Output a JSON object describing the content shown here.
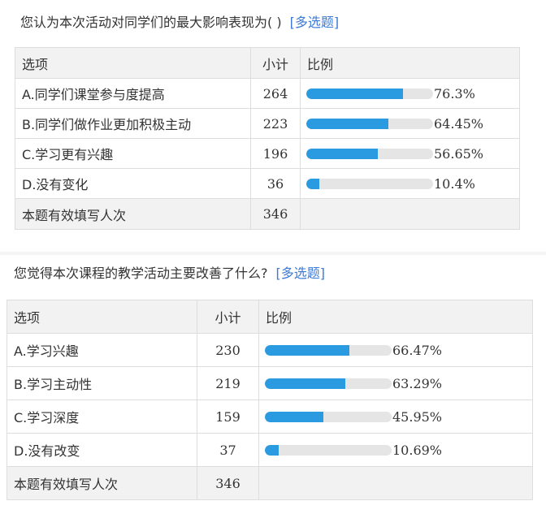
{
  "questions": [
    {
      "title": "您认为本次活动对同学们的最大影响表现为( )",
      "tag": "[多选题]",
      "headers": {
        "option": "选项",
        "count": "小计",
        "ratio": "比例"
      },
      "rows": [
        {
          "option": "A.同学们课堂参与度提高",
          "count": "264",
          "percent_text": "76.3%",
          "percent": 76.3
        },
        {
          "option": "B.同学们做作业更加积极主动",
          "count": "223",
          "percent_text": "64.45%",
          "percent": 64.45
        },
        {
          "option": "C.学习更有兴趣",
          "count": "196",
          "percent_text": "56.65%",
          "percent": 56.65
        },
        {
          "option": "D.没有变化",
          "count": "36",
          "percent_text": "10.4%",
          "percent": 10.4
        }
      ],
      "total": {
        "label": "本题有效填写人次",
        "count": "346"
      }
    },
    {
      "title": "您觉得本次课程的教学活动主要改善了什么?",
      "tag": "[多选题]",
      "headers": {
        "option": "选项",
        "count": "小计",
        "ratio": "比例"
      },
      "rows": [
        {
          "option": "A.学习兴趣",
          "count": "230",
          "percent_text": "66.47%",
          "percent": 66.47
        },
        {
          "option": "B.学习主动性",
          "count": "219",
          "percent_text": "63.29%",
          "percent": 63.29
        },
        {
          "option": "C.学习深度",
          "count": "159",
          "percent_text": "45.95%",
          "percent": 45.95
        },
        {
          "option": "D.没有改变",
          "count": "37",
          "percent_text": "10.69%",
          "percent": 10.69
        }
      ],
      "total": {
        "label": "本题有效填写人次",
        "count": "346"
      }
    }
  ],
  "colors": {
    "bar_fill": "#2a9be0",
    "bar_track": "#e5e5e5",
    "tag_link": "#3d7ad6",
    "header_bg": "#f2f2f2",
    "border": "#dddddd"
  }
}
